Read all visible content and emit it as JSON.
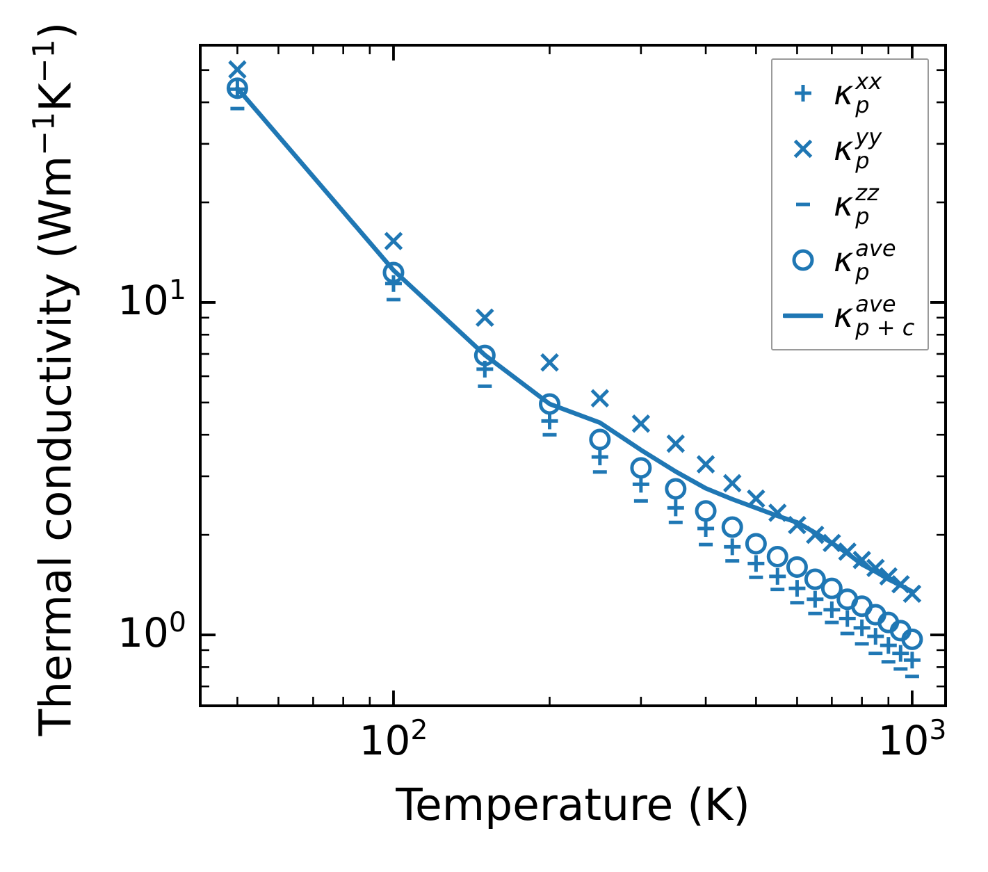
{
  "chart_data": {
    "type": "scatter+line",
    "title": "",
    "xlabel": "Temperature (K)",
    "ylabel": "Thermal conductivity (Wm⁻¹K⁻¹)",
    "ylabel_parts": {
      "pre": "Thermal conductivity (Wm",
      "sup1": "−1",
      "mid": "K",
      "sup2": "−1",
      "post": ")"
    },
    "xscale": "log",
    "yscale": "log",
    "xlim": [
      42.4,
      1160
    ],
    "ylim": [
      0.612,
      59.4
    ],
    "grid": false,
    "color": "#1f77b4",
    "x_major_ticks": [
      100,
      1000
    ],
    "x_minor_ticks": [
      50,
      60,
      70,
      80,
      90,
      200,
      300,
      400,
      500,
      600,
      700,
      800,
      900
    ],
    "y_major_ticks": [
      10,
      1
    ],
    "y_minor_ticks": [
      50,
      40,
      30,
      20,
      9,
      8,
      7,
      6,
      5,
      4,
      3,
      2,
      0.9,
      0.8,
      0.7
    ],
    "x_tick_labels": [
      {
        "base": "10",
        "exp": "2"
      },
      {
        "base": "10",
        "exp": "3"
      }
    ],
    "y_tick_labels": [
      {
        "base": "10",
        "exp": "1"
      },
      {
        "base": "10",
        "exp": "0"
      }
    ],
    "temperatures": [
      50,
      100,
      150,
      200,
      250,
      300,
      350,
      400,
      450,
      500,
      550,
      600,
      650,
      700,
      750,
      800,
      850,
      900,
      950,
      1000
    ],
    "series": [
      {
        "name": "kappa_p_xx",
        "marker": "plus",
        "values": [
          43.8,
          11.4,
          6.3,
          4.4,
          3.43,
          2.84,
          2.41,
          2.09,
          1.84,
          1.64,
          1.5,
          1.38,
          1.28,
          1.19,
          1.12,
          1.05,
          0.99,
          0.93,
          0.88,
          0.84
        ]
      },
      {
        "name": "kappa_p_yy",
        "marker": "x",
        "values": [
          50.2,
          15.3,
          9.0,
          6.6,
          5.15,
          4.32,
          3.76,
          3.26,
          2.86,
          2.57,
          2.33,
          2.14,
          2.0,
          1.89,
          1.78,
          1.68,
          1.59,
          1.5,
          1.42,
          1.33
        ]
      },
      {
        "name": "kappa_p_zz",
        "marker": "minus",
        "values": [
          38.3,
          10.2,
          5.6,
          4.0,
          3.09,
          2.53,
          2.18,
          1.87,
          1.67,
          1.49,
          1.37,
          1.25,
          1.16,
          1.09,
          1.01,
          0.94,
          0.88,
          0.83,
          0.79,
          0.75
        ]
      },
      {
        "name": "kappa_p_ave",
        "marker": "circle",
        "values": [
          44.1,
          12.3,
          6.93,
          4.95,
          3.87,
          3.18,
          2.75,
          2.36,
          2.11,
          1.88,
          1.72,
          1.6,
          1.47,
          1.38,
          1.28,
          1.22,
          1.15,
          1.09,
          1.03,
          0.97
        ]
      },
      {
        "name": "kappa_p_plus_c_ave",
        "marker": "line",
        "values": [
          44.1,
          12.5,
          6.95,
          4.95,
          4.35,
          3.6,
          3.1,
          2.76,
          2.56,
          2.41,
          2.28,
          2.18,
          2.03,
          1.89,
          1.76,
          1.63,
          1.55,
          1.47,
          1.41,
          1.35
        ]
      }
    ],
    "legend": {
      "position": "upper right",
      "items": [
        {
          "marker": "plus",
          "kappa": "κ",
          "sup": "xx",
          "sub": "p"
        },
        {
          "marker": "x",
          "kappa": "κ",
          "sup": "yy",
          "sub": "p"
        },
        {
          "marker": "minus",
          "kappa": "κ",
          "sup": "zz",
          "sub": "p"
        },
        {
          "marker": "circle",
          "kappa": "κ",
          "sup": "ave",
          "sub": "p"
        },
        {
          "marker": "line",
          "kappa": "κ",
          "sup": "ave",
          "sub": "p + c"
        }
      ]
    }
  }
}
